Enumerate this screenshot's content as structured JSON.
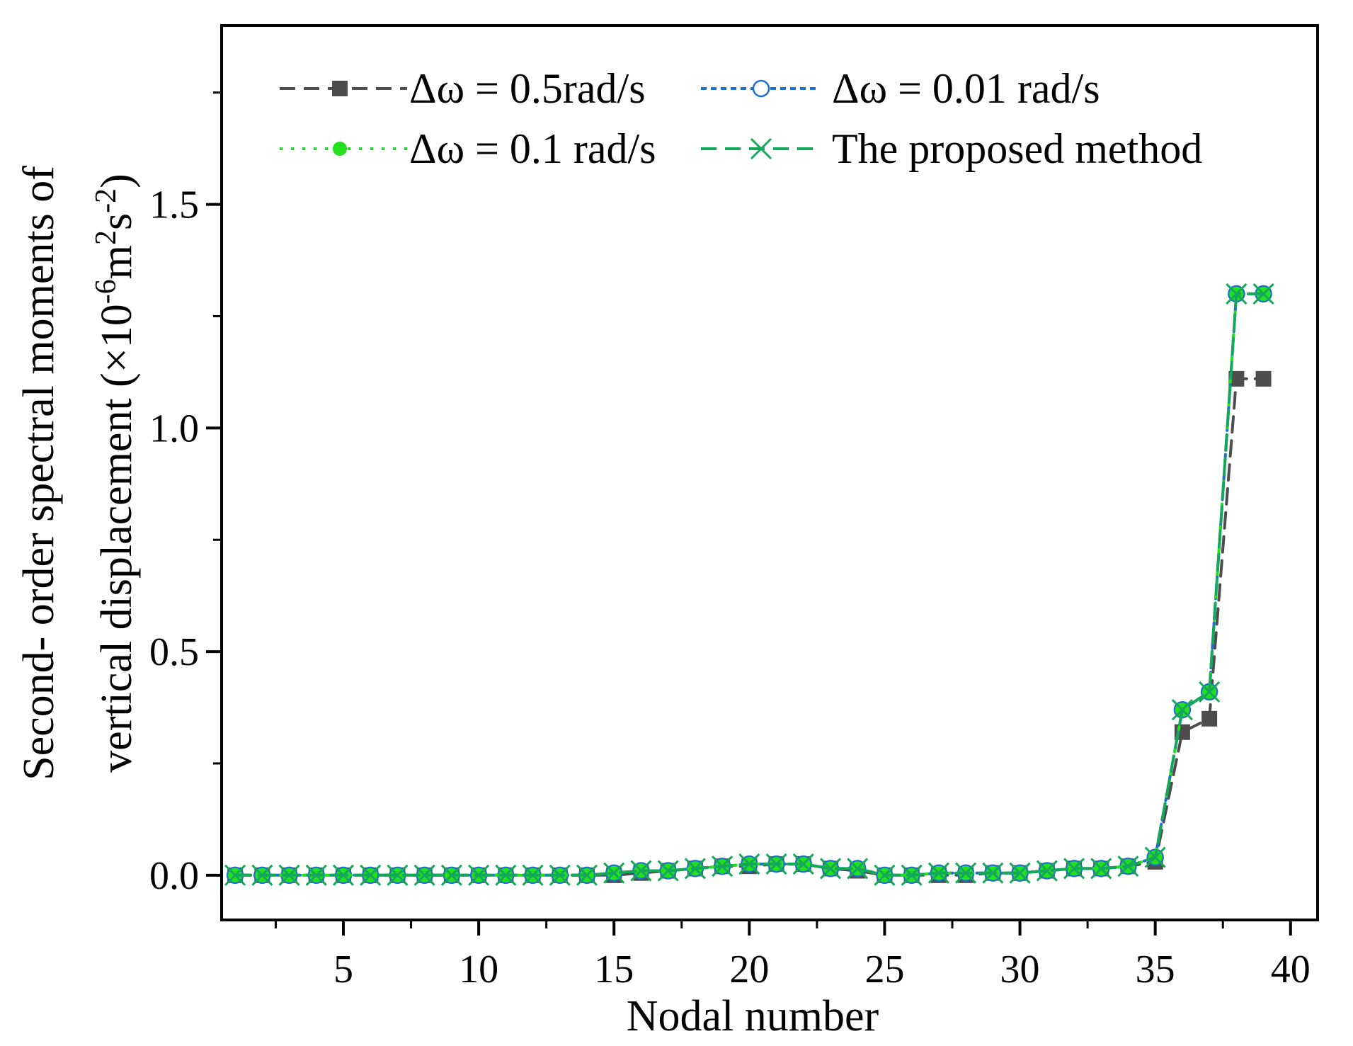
{
  "chart_data": {
    "type": "line",
    "title": "",
    "xlabel": "Nodal number",
    "ylabel_line1": "Second- order spectral moments of",
    "ylabel_line2_prefix": "vertical displacement (×10",
    "ylabel_exp1": "-6",
    "ylabel_mid": "m",
    "ylabel_exp2": "2",
    "ylabel_mid2": "s",
    "ylabel_exp3": "-2",
    "ylabel_suffix": ")",
    "xlim": [
      0.5,
      41
    ],
    "ylim": [
      -0.1,
      1.9
    ],
    "xticks": [
      5,
      10,
      15,
      20,
      25,
      30,
      35,
      40
    ],
    "xtick_labels": [
      "5",
      "10",
      "15",
      "20",
      "25",
      "30",
      "35",
      "40"
    ],
    "yticks": [
      0.0,
      0.5,
      1.0,
      1.5
    ],
    "ytick_labels": [
      "0.0",
      "0.5",
      "1.0",
      "1.5"
    ],
    "grid": false,
    "legend_position": "top",
    "x": [
      1,
      2,
      3,
      4,
      5,
      6,
      7,
      8,
      9,
      10,
      11,
      12,
      13,
      14,
      15,
      16,
      17,
      18,
      19,
      20,
      21,
      22,
      23,
      24,
      25,
      26,
      27,
      28,
      29,
      30,
      31,
      32,
      33,
      34,
      35,
      36,
      37,
      38,
      39
    ],
    "series": [
      {
        "name": "Δω = 0.5rad/s",
        "color": "#4d4d4d",
        "marker": "square",
        "line_style": "dash",
        "values": [
          0,
          0,
          0,
          0,
          0,
          0,
          0,
          0,
          0,
          0,
          0,
          0,
          0,
          0,
          0,
          0.005,
          0.01,
          0.015,
          0.02,
          0.02,
          0.025,
          0.025,
          0.015,
          0.01,
          0,
          0,
          0,
          0,
          0.005,
          0.005,
          0.01,
          0.015,
          0.015,
          0.02,
          0.03,
          0.32,
          0.35,
          1.11,
          1.11
        ]
      },
      {
        "name": "Δω = 0.01 rad/s",
        "color": "#1f6fd1",
        "marker": "circle-open",
        "line_style": "dot-dense",
        "values": [
          0,
          0,
          0,
          0,
          0,
          0,
          0,
          0,
          0,
          0,
          0,
          0,
          0,
          0,
          0.005,
          0.01,
          0.01,
          0.015,
          0.02,
          0.025,
          0.025,
          0.025,
          0.015,
          0.015,
          0,
          0,
          0.005,
          0.005,
          0.005,
          0.005,
          0.01,
          0.015,
          0.015,
          0.02,
          0.04,
          0.37,
          0.41,
          1.3,
          1.3
        ]
      },
      {
        "name": "Δω = 0.1 rad/s",
        "color": "#22e01c",
        "marker": "circle-filled",
        "line_style": "dot",
        "values": [
          0,
          0,
          0,
          0,
          0,
          0,
          0,
          0,
          0,
          0,
          0,
          0,
          0,
          0,
          0.005,
          0.01,
          0.01,
          0.015,
          0.02,
          0.025,
          0.025,
          0.025,
          0.015,
          0.015,
          0,
          0,
          0.005,
          0.005,
          0.005,
          0.005,
          0.01,
          0.015,
          0.015,
          0.02,
          0.04,
          0.37,
          0.41,
          1.3,
          1.3
        ]
      },
      {
        "name": "The proposed method",
        "color": "#14a85a",
        "marker": "x",
        "line_style": "dash",
        "values": [
          0,
          0,
          0,
          0,
          0,
          0,
          0,
          0,
          0,
          0,
          0,
          0,
          0,
          0,
          0.005,
          0.01,
          0.01,
          0.015,
          0.02,
          0.025,
          0.025,
          0.025,
          0.015,
          0.015,
          0,
          0,
          0.005,
          0.005,
          0.005,
          0.005,
          0.01,
          0.015,
          0.015,
          0.02,
          0.04,
          0.37,
          0.41,
          1.3,
          1.3
        ]
      }
    ]
  }
}
